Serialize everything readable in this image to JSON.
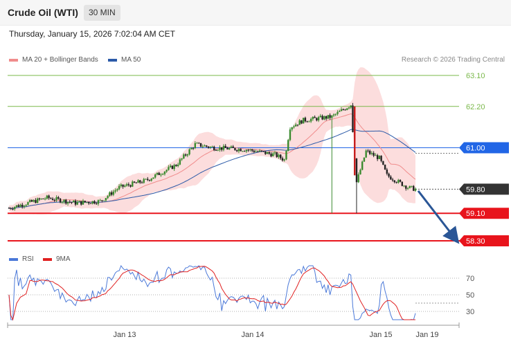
{
  "header": {
    "title": "Crude Oil (WTI)",
    "timeframe": "30 MIN"
  },
  "datetime": "Thursday, January 15, 2026 7:02:04 AM CET",
  "legend": {
    "ma20": {
      "label": "MA 20 + Bollinger Bands",
      "color": "#f08c8c"
    },
    "ma50": {
      "label": "MA 50",
      "color": "#2b5aa8"
    }
  },
  "credit": "Research © 2026 Trading Central",
  "rsi_legend": {
    "rsi": {
      "label": "RSI",
      "color": "#4a78d8"
    },
    "ma9": {
      "label": "9MA",
      "color": "#e02020"
    }
  },
  "chart_data": {
    "type": "candlestick",
    "x_labels": [
      "Jan 13",
      "Jan 14",
      "Jan 15",
      "Jan 19"
    ],
    "price_range": [
      58.1,
      63.4
    ],
    "levels": [
      {
        "price": 63.1,
        "label": "63.10",
        "kind": "resistance",
        "color": "#7ab84a"
      },
      {
        "price": 62.2,
        "label": "62.20",
        "kind": "resistance",
        "color": "#7ab84a"
      },
      {
        "price": 61.0,
        "label": "61.00",
        "kind": "pivot",
        "color": "#2166e6"
      },
      {
        "price": 59.1,
        "label": "59.10",
        "kind": "support",
        "color": "#e8141c"
      },
      {
        "price": 58.3,
        "label": "58.30",
        "kind": "support",
        "color": "#e8141c"
      }
    ],
    "last_price": {
      "price": 59.8,
      "label": "59.80",
      "color": "#333333"
    },
    "rsi": {
      "range": [
        20,
        85
      ],
      "ticks": [
        70,
        50,
        30
      ]
    }
  }
}
